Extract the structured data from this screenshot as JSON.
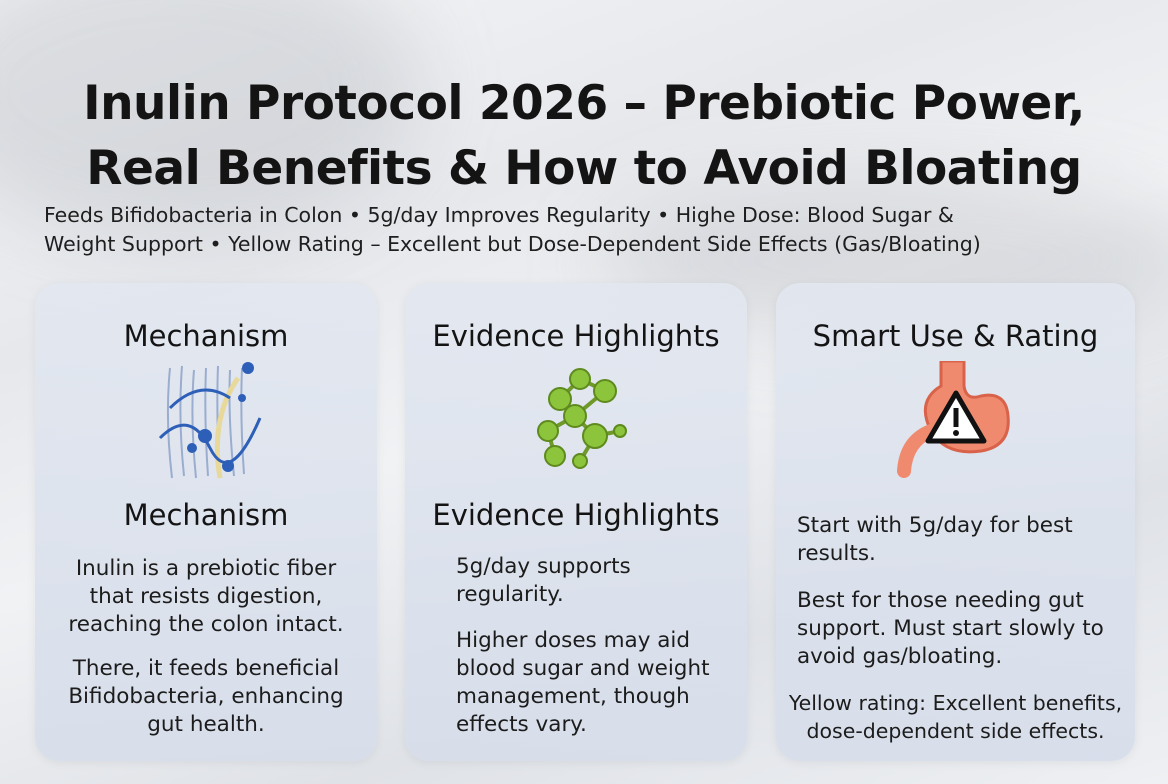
{
  "header": {
    "title_lines": [
      "Inulin Protocol 2026 – Prebiotic Power,",
      "Real Benefits & How to Avoid Bloating"
    ],
    "subtitle_lines": [
      "Feeds Bifidobacteria in Colon  •  5g/day Improves Regularity   •  Highe Dose: Blood Sugar &",
      "Weight Support  •  Yellow Rating – Excellent but Dose-Dependent Side Effects (Gas/Bloating)"
    ]
  },
  "cards": [
    {
      "heading": "Mechanism",
      "subheading": "Mechanism",
      "paragraphs": [
        "Inulin is a prebiotic fiber that resists digestion, reaching the colon intact.",
        "There, it feeds beneficial Bifidobacteria, enhancing gut health."
      ]
    },
    {
      "heading": "Evidence Highlights",
      "subheading": "Evidence Highlights",
      "paragraphs": [
        "5g/day supports regularity.",
        "Higher doses may aid blood sugar and weight management, though effects vary."
      ]
    },
    {
      "heading": "Smart Use & Rating",
      "paragraphs": [
        "Start with 5g/day for best results.",
        "Best for those needing gut support. Must start slowly to avoid gas/bloating.",
        "Yellow rating: Excellent benefits, dose-dependent side effects."
      ]
    }
  ]
}
